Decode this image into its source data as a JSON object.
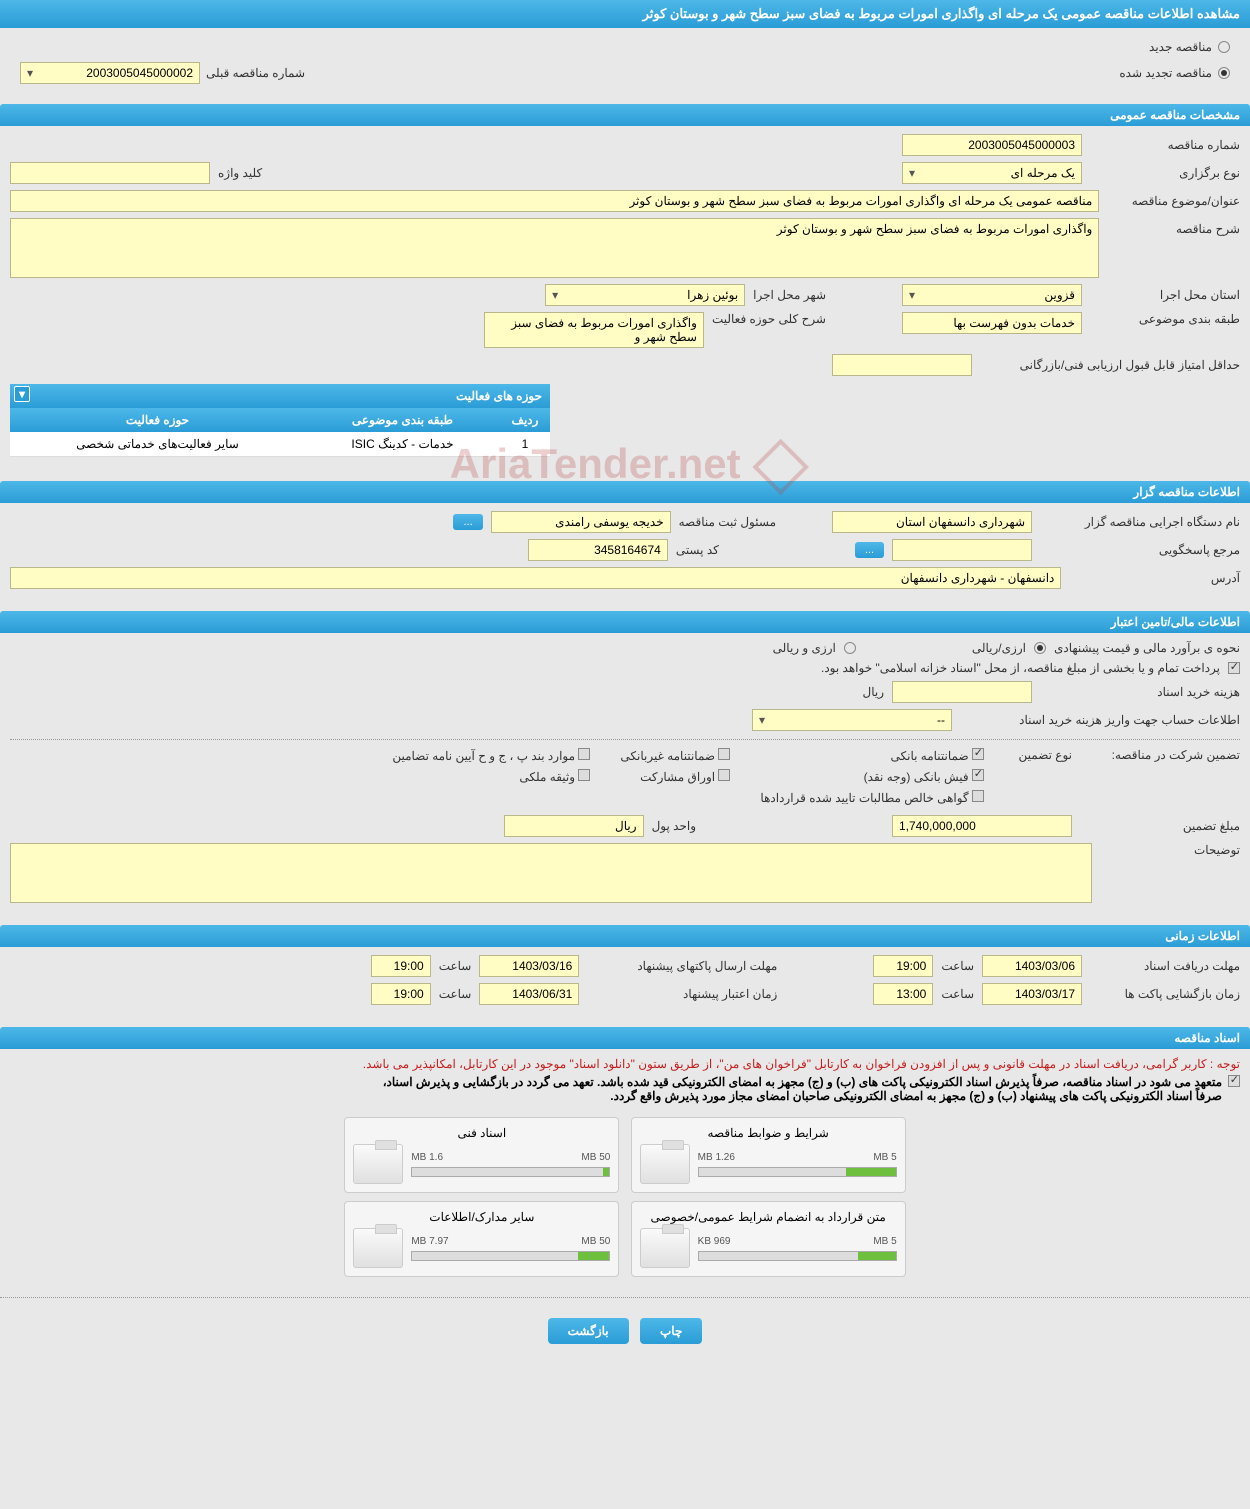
{
  "page_title": "مشاهده اطلاعات مناقصه عمومی یک مرحله ای واگذاری امورات مربوط به فضای سبز سطح شهر و بوستان کوثر",
  "top_radio": {
    "new_tender": "مناقصه جدید",
    "renewed_tender": "مناقصه تجدید شده",
    "prev_number_label": "شماره مناقصه قبلی",
    "prev_number_value": "2003005045000002"
  },
  "sections": {
    "general": "مشخصات مناقصه عمومی",
    "activity": "حوزه های فعالیت",
    "organizer": "اطلاعات مناقصه گزار",
    "financial": "اطلاعات مالی/تامین اعتبار",
    "timing": "اطلاعات زمانی",
    "documents": "اسناد مناقصه"
  },
  "general": {
    "tender_number_label": "شماره مناقصه",
    "tender_number": "2003005045000003",
    "hold_type_label": "نوع برگزاری",
    "hold_type": "یک مرحله ای",
    "keyword_label": "کلید واژه",
    "keyword": "",
    "title_label": "عنوان/موضوع مناقصه",
    "title": "مناقصه عمومی یک مرحله ای واگذاری امورات مربوط به فضای سبز سطح شهر و بوستان کوثر",
    "desc_label": "شرح مناقصه",
    "desc": "واگذاری امورات مربوط به فضای سبز سطح شهر و بوستان کوثر",
    "province_label": "استان محل اجرا",
    "province": "قزوین",
    "city_label": "شهر محل اجرا",
    "city": "بوئین زهرا",
    "category_label": "طبقه بندی موضوعی",
    "category": "خدمات بدون فهرست بها",
    "activity_scope_label": "شرح کلی حوزه فعالیت",
    "activity_scope": "واگذاری امورات مربوط به فضای سبز سطح شهر و",
    "min_score_label": "حداقل امتیاز قابل قبول ارزیابی فنی/بازرگانی",
    "min_score": ""
  },
  "activity_table": {
    "col_row": "ردیف",
    "col_category": "طبقه بندی موضوعی",
    "col_scope": "حوزه فعالیت",
    "row1_num": "1",
    "row1_cat": "خدمات - کدینگ ISIC",
    "row1_scope": "سایر فعالیت‌های خدماتی شخصی"
  },
  "organizer": {
    "exec_label": "نام دستگاه اجرایی مناقصه گزار",
    "exec_value": "شهرداری دانسفهان استان",
    "registrar_label": "مسئول ثبت مناقصه",
    "registrar_value": "خدیجه یوسفی رامندی",
    "contact_label": "مرجع پاسخگویی",
    "contact_value": "",
    "postal_label": "کد پستی",
    "postal_value": "3458164674",
    "address_label": "آدرس",
    "address_value": "دانسفهان - شهرداری دانسفهان"
  },
  "financial": {
    "method_label": "نحوه ی برآورد مالی و قیمت پیشنهادی",
    "radio_arz_riyal": "ارزی/ریالی",
    "radio_arz_va_riyal": "ارزی و ریالی",
    "treasury_note": "پرداخت تمام و یا بخشی از مبلغ مناقصه، از محل \"اسناد خزانه اسلامی\" خواهد بود.",
    "cost_label": "هزینه خرید اسناد",
    "cost_unit": "ریال",
    "account_label": "اطلاعات حساب جهت واریز هزینه خرید اسناد",
    "account_placeholder": "--",
    "guarantee_type_label": "تضمین شرکت در مناقصه:",
    "guarantee_sub_label": "نوع تضمین",
    "chk_bank_guarantee": "ضمانتنامه بانکی",
    "chk_nonbank_guarantee": "ضمانتنامه غیربانکی",
    "chk_regulation": "موارد بند پ ، ج و ح آیین نامه تضامین",
    "chk_bank_receipt": "فیش بانکی (وجه نقد)",
    "chk_participation": "اوراق مشارکت",
    "chk_property": "وثیقه ملکی",
    "chk_receivables": "گواهی خالص مطالبات تایید شده قراردادها",
    "guarantee_amount_label": "مبلغ تضمین",
    "guarantee_amount": "1,740,000,000",
    "currency_label": "واحد پول",
    "currency": "ریال",
    "notes_label": "توضیحات",
    "notes": ""
  },
  "timing": {
    "receive_deadline_label": "مهلت دریافت اسناد",
    "receive_deadline_date": "1403/03/06",
    "receive_deadline_time_label": "ساعت",
    "receive_deadline_time": "19:00",
    "send_deadline_label": "مهلت ارسال پاکتهای پیشنهاد",
    "send_deadline_date": "1403/03/16",
    "send_deadline_time": "19:00",
    "open_label": "زمان بازگشایی پاکت ها",
    "open_date": "1403/03/17",
    "open_time": "13:00",
    "validity_label": "زمان اعتبار پیشنهاد",
    "validity_date": "1403/06/31",
    "validity_time": "19:00"
  },
  "documents": {
    "warning": "توجه : کاربر گرامی، دریافت اسناد در مهلت قانونی و پس از افزودن فراخوان به کارتابل \"فراخوان های من\"، از طریق ستون \"دانلود اسناد\" موجود در این کارتابل، امکانپذیر می باشد.",
    "note1": "متعهد می شود در اسناد مناقصه، صرفاً پذیرش اسناد الکترونیکی پاکت های (ب) و (ج) مجهز به امضای الکترونیکی قید شده باشد. تعهد می گردد در بازگشایی و پذیرش اسناد،",
    "note2": "صرفاً اسناد الکترونیکی پاکت های پیشنهاد (ب) و (ج) مجهز به امضای الکترونیکی صاحبان امضای مجاز مورد پذیرش واقع گردد.",
    "doc1_title": "شرایط و ضوابط مناقصه",
    "doc1_used": "1.26 MB",
    "doc1_total": "5 MB",
    "doc1_pct": 25,
    "doc2_title": "اسناد فنی",
    "doc2_used": "1.6 MB",
    "doc2_total": "50 MB",
    "doc2_pct": 3,
    "doc3_title": "متن قرارداد به انضمام شرایط عمومی/خصوصی",
    "doc3_used": "969 KB",
    "doc3_total": "5 MB",
    "doc3_pct": 19,
    "doc4_title": "سایر مدارک/اطلاعات",
    "doc4_used": "7.97 MB",
    "doc4_total": "50 MB",
    "doc4_pct": 16
  },
  "footer": {
    "print": "چاپ",
    "back": "بازگشت"
  },
  "watermark": "AriaTender.net"
}
